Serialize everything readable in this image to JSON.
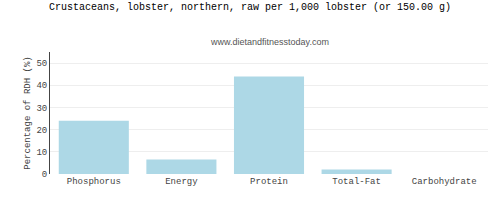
{
  "chart_data": {
    "type": "bar",
    "title": "Crustaceans, lobster, northern, raw per 1,000 lobster (or 150.00 g)",
    "subtitle": "www.dietandfitnesstoday.com",
    "categories": [
      "Phosphorus",
      "Energy",
      "Protein",
      "Total-Fat",
      "Carbohydrate"
    ],
    "values": [
      24,
      6.5,
      44,
      2,
      0
    ],
    "color": "#add8e6",
    "ylabel": "Percentage of RDH (%)",
    "ylim": [
      0,
      55
    ],
    "yticks": [
      0,
      10,
      20,
      30,
      40,
      50
    ],
    "grid": true
  }
}
